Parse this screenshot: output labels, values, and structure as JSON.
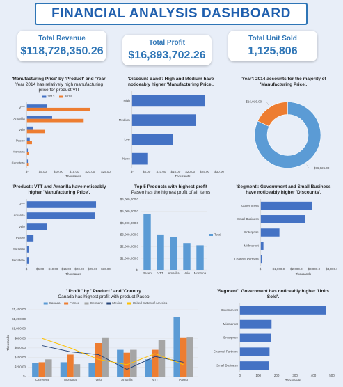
{
  "title": "FINANCIAL ANALYSIS DASHBOARD",
  "kpis": [
    {
      "label": "Total Revenue",
      "value": "$118,726,350.26"
    },
    {
      "label": "Total Profit",
      "value": "$16,893,702.26"
    },
    {
      "label": "Total Unit Sold",
      "value": "1,125,806"
    }
  ],
  "chart_data": [
    {
      "type": "bar",
      "orientation": "horizontal",
      "title": "'Manufacturing Price' by 'Product' and 'Year'",
      "subtitle": "Year 2014 has relatively high manufacturing price for product VIT",
      "categories": [
        "VTT",
        "Amarilla",
        "Velo",
        "Paseo",
        "Montana",
        "Carretera"
      ],
      "series": [
        {
          "name": "2013",
          "color": "#4472c4",
          "values": [
            6.3,
            8,
            2,
            0.9,
            0.3,
            0.3
          ]
        },
        {
          "name": "2014",
          "color": "#ed7d31",
          "values": [
            20,
            18,
            5.6,
            1.6,
            0.5,
            0.4
          ]
        }
      ],
      "xlim": [
        0,
        25
      ],
      "xticks": [
        {
          "value": 0,
          "label": "$-"
        },
        {
          "value": 5,
          "label": "$5.00"
        },
        {
          "value": 10,
          "label": "$10.00"
        },
        {
          "value": 15,
          "label": "$15.00"
        },
        {
          "value": 20,
          "label": "$20.00"
        },
        {
          "value": 25,
          "label": "$25.00"
        }
      ],
      "x_label": "Thousands",
      "legend": "top",
      "grid": false
    },
    {
      "type": "bar",
      "orientation": "horizontal",
      "title": "'Discount Band': High and Medium have noticeably higher 'Manufacturing Price'.",
      "categories": [
        "High",
        "Medium",
        "Low",
        "None"
      ],
      "values": [
        25,
        22,
        14,
        5.5
      ],
      "color": "#4472c4",
      "xlim": [
        0,
        30
      ],
      "xticks": [
        {
          "value": 0,
          "label": "$-"
        },
        {
          "value": 5,
          "label": "$5.00"
        },
        {
          "value": 10,
          "label": "$10.00"
        },
        {
          "value": 15,
          "label": "$15.00"
        },
        {
          "value": 20,
          "label": "$20.00"
        },
        {
          "value": 25,
          "label": "$25.00"
        },
        {
          "value": 30,
          "label": "$30.00"
        }
      ],
      "x_label": "Thousands",
      "grid": false
    },
    {
      "type": "donut",
      "title": "'Year': 2014 accounts for the majority of 'Manufacturing Price'.",
      "values": [
        16916,
        76626
      ],
      "value_labels": [
        "$16,916.00",
        "$76,626.00"
      ],
      "colors": [
        "#ed7d31",
        "#5b9bd5"
      ]
    },
    {
      "type": "bar",
      "orientation": "horizontal",
      "title": "'Product': VTT and Amarilla have noticeably higher 'Manufacturing Price'.",
      "categories": [
        "VTT",
        "Amarilla",
        "Velo",
        "Paseo",
        "Montana",
        "Carretera"
      ],
      "values": [
        26.3,
        26,
        7.6,
        2.5,
        0.8,
        0.7
      ],
      "color": "#4472c4",
      "xlim": [
        0,
        30
      ],
      "xticks": [
        {
          "value": 0,
          "label": "$-"
        },
        {
          "value": 5,
          "label": "$5.00"
        },
        {
          "value": 10,
          "label": "$10.00"
        },
        {
          "value": 15,
          "label": "$15.00"
        },
        {
          "value": 20,
          "label": "$20.00"
        },
        {
          "value": 25,
          "label": "$25.00"
        },
        {
          "value": 30,
          "label": "$30.00"
        }
      ],
      "x_label": "Thousands",
      "grid": false
    },
    {
      "type": "bar",
      "orientation": "vertical",
      "title": "Top 5 Products with highest profit",
      "subtitle": "Paseo has the highest profit of all items",
      "categories": [
        "Paseo",
        "VTT",
        "Amarilla",
        "Velo",
        "Montana"
      ],
      "series": [
        {
          "name": "Total",
          "color": "#5b9bd5",
          "values": [
            4797437.96,
            3034608.02,
            2814104.06,
            2305992.53,
            2114754.9
          ]
        }
      ],
      "ylim": [
        0,
        6000000
      ],
      "yticks": [
        {
          "value": 0,
          "label": "$-"
        },
        {
          "value": 1000000,
          "label": "$1,000,000.0"
        },
        {
          "value": 2000000,
          "label": "$2,000,000.0"
        },
        {
          "value": 3000000,
          "label": "$3,000,000.0"
        },
        {
          "value": 4000000,
          "label": "$4,000,000.0"
        },
        {
          "value": 5000000,
          "label": "$5,000,000.0"
        },
        {
          "value": 6000000,
          "label": "$6,000,000.0"
        }
      ],
      "legend": "right",
      "grid": true
    },
    {
      "type": "bar",
      "orientation": "horizontal",
      "title": "'Segment': Government and Small Business have noticeably higher 'Discounts'.",
      "categories": [
        "Government",
        "Small Business",
        "Enterprise",
        "Midmarket",
        "Channel Partners"
      ],
      "values": [
        2900,
        2500,
        1050,
        150,
        80
      ],
      "color": "#4472c4",
      "xlim": [
        0,
        4000
      ],
      "xticks": [
        {
          "value": 0,
          "label": "$-"
        },
        {
          "value": 1000,
          "label": "$1,000.0"
        },
        {
          "value": 2000,
          "label": "$2,000.0"
        },
        {
          "value": 3000,
          "label": "$3,000.0"
        },
        {
          "value": 4000,
          "label": "$4,000.0"
        }
      ],
      "x_label": "Thousands",
      "grid": false
    },
    {
      "type": "combo",
      "title": "' Profit ' by ' Product ' and 'Country",
      "subtitle": "Canada has highest profit with product Paseo",
      "categories": [
        "Carretera",
        "Montana",
        "Velo",
        "Amarilla",
        "VTT",
        "Paseo"
      ],
      "series": [
        {
          "name": "Canada",
          "kind": "bar",
          "color": "#5b9bd5",
          "values": [
            280,
            300,
            280,
            560,
            360,
            1250
          ]
        },
        {
          "name": "France",
          "kind": "bar",
          "color": "#ed7d31",
          "values": [
            300,
            460,
            700,
            500,
            560,
            820
          ]
        },
        {
          "name": "Germany",
          "kind": "bar",
          "color": "#a5a5a5",
          "values": [
            360,
            260,
            820,
            560,
            760,
            830
          ]
        },
        {
          "name": "Mexico",
          "kind": "line",
          "color": "#264478",
          "values": [
            650,
            520,
            460,
            150,
            420,
            300
          ]
        },
        {
          "name": "United States of America",
          "kind": "line",
          "color": "#ffc000",
          "values": [
            800,
            600,
            360,
            250,
            480,
            250
          ]
        }
      ],
      "ylim": [
        0,
        1400
      ],
      "yticks": [
        {
          "value": 0,
          "label": "$-"
        },
        {
          "value": 200,
          "label": "$200.00"
        },
        {
          "value": 400,
          "label": "$400.00"
        },
        {
          "value": 600,
          "label": "$600.00"
        },
        {
          "value": 800,
          "label": "$800.00"
        },
        {
          "value": 1000,
          "label": "$1,000.00"
        },
        {
          "value": 1200,
          "label": "$1,200.00"
        },
        {
          "value": 1400,
          "label": "$1,400.00"
        }
      ],
      "y_label": "Thousands",
      "legend": "top",
      "grid": true
    },
    {
      "type": "bar",
      "orientation": "horizontal",
      "title": "'Segment': Government has noticeably higher 'Units Sold'.",
      "categories": [
        "Government",
        "Midmarket",
        "Enterprise",
        "Channel Partners",
        "Small Business"
      ],
      "values": [
        466,
        172,
        169,
        161,
        157
      ],
      "color": "#4472c4",
      "xlim": [
        0,
        500
      ],
      "xticks": [
        0,
        100,
        200,
        300,
        400,
        500
      ],
      "x_label": "Thousands",
      "grid": false
    }
  ]
}
